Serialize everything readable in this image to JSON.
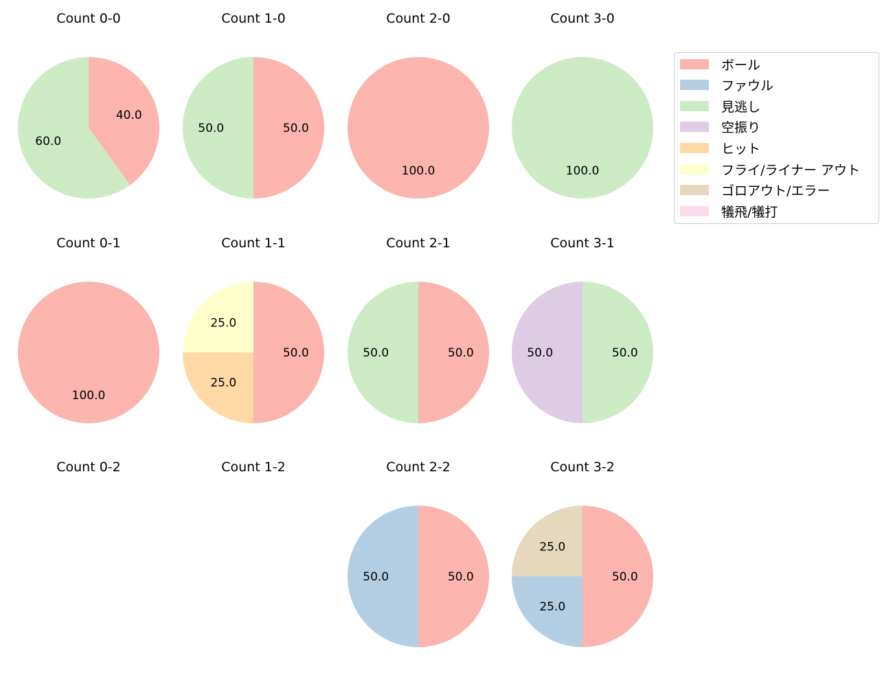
{
  "colors": {
    "ボール": "#fbb4ae",
    "ファウル": "#b3cde3",
    "見逃し": "#ccebc5",
    "空振り": "#decbe4",
    "ヒット": "#fed9a6",
    "フライ/ライナー アウト": "#ffffcc",
    "ゴロアウト/エラー": "#e5d8bd",
    "犠飛/犠打": "#fddaec"
  },
  "legend": {
    "items": [
      {
        "label": "ボール",
        "color": "#fbb4ae"
      },
      {
        "label": "ファウル",
        "color": "#b3cde3"
      },
      {
        "label": "見逃し",
        "color": "#ccebc5"
      },
      {
        "label": "空振り",
        "color": "#decbe4"
      },
      {
        "label": "ヒット",
        "color": "#fed9a6"
      },
      {
        "label": "フライ/ライナー アウト",
        "color": "#ffffcc"
      },
      {
        "label": "ゴロアウト/エラー",
        "color": "#e5d8bd"
      },
      {
        "label": "犠飛/犠打",
        "color": "#fddaec"
      }
    ]
  },
  "chart_data": [
    {
      "type": "pie",
      "title": "Count 0-0",
      "labels": [
        "ボール",
        "見逃し"
      ],
      "values": [
        40.0,
        60.0
      ]
    },
    {
      "type": "pie",
      "title": "Count 1-0",
      "labels": [
        "ボール",
        "見逃し"
      ],
      "values": [
        50.0,
        50.0
      ]
    },
    {
      "type": "pie",
      "title": "Count 2-0",
      "labels": [
        "ボール"
      ],
      "values": [
        100.0
      ]
    },
    {
      "type": "pie",
      "title": "Count 3-0",
      "labels": [
        "見逃し"
      ],
      "values": [
        100.0
      ]
    },
    {
      "type": "pie",
      "title": "Count 0-1",
      "labels": [
        "ボール"
      ],
      "values": [
        100.0
      ]
    },
    {
      "type": "pie",
      "title": "Count 1-1",
      "labels": [
        "ボール",
        "ヒット",
        "フライ/ライナー アウト"
      ],
      "values": [
        50.0,
        25.0,
        25.0
      ]
    },
    {
      "type": "pie",
      "title": "Count 2-1",
      "labels": [
        "ボール",
        "見逃し"
      ],
      "values": [
        50.0,
        50.0
      ]
    },
    {
      "type": "pie",
      "title": "Count 3-1",
      "labels": [
        "見逃し",
        "空振り"
      ],
      "values": [
        50.0,
        50.0
      ]
    },
    {
      "type": "pie",
      "title": "Count 0-2",
      "labels": [],
      "values": []
    },
    {
      "type": "pie",
      "title": "Count 1-2",
      "labels": [],
      "values": []
    },
    {
      "type": "pie",
      "title": "Count 2-2",
      "labels": [
        "ボール",
        "ファウル"
      ],
      "values": [
        50.0,
        50.0
      ]
    },
    {
      "type": "pie",
      "title": "Count 3-2",
      "labels": [
        "ボール",
        "ファウル",
        "ゴロアウト/エラー"
      ],
      "values": [
        50.0,
        25.0,
        25.0
      ]
    }
  ]
}
